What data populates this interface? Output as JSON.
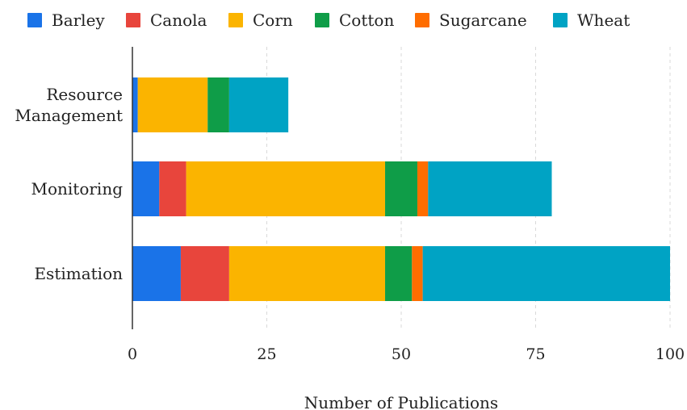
{
  "chart_data": {
    "type": "bar",
    "orientation": "horizontal",
    "stacked": true,
    "title": "",
    "xlabel": "Number of Publications",
    "ylabel": "",
    "xlim": [
      0,
      100
    ],
    "x_ticks": [
      0,
      25,
      50,
      75,
      100
    ],
    "grid": true,
    "legend_position": "top",
    "categories": [
      "Resource Management",
      "Monitoring",
      "Estimation"
    ],
    "series": [
      {
        "name": "Barley",
        "color": "#1a73e8",
        "values": [
          1,
          5,
          9
        ]
      },
      {
        "name": "Canola",
        "color": "#e8453c",
        "values": [
          0,
          5,
          9
        ]
      },
      {
        "name": "Corn",
        "color": "#fbb400",
        "values": [
          13,
          37,
          29
        ]
      },
      {
        "name": "Cotton",
        "color": "#0f9d48",
        "values": [
          4,
          6,
          5
        ]
      },
      {
        "name": "Sugarcane",
        "color": "#ff6d00",
        "values": [
          0,
          2,
          2
        ]
      },
      {
        "name": "Wheat",
        "color": "#00a3c4",
        "values": [
          11,
          23,
          46
        ]
      }
    ]
  }
}
